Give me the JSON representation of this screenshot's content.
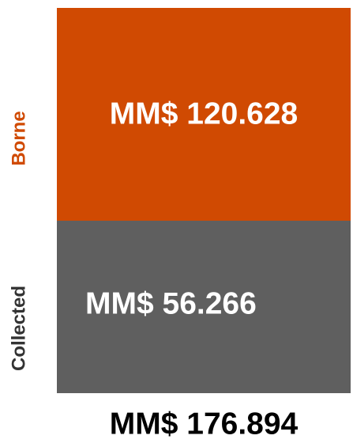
{
  "segments": [
    {
      "label": "Borne",
      "value": "MM$ 120.628"
    },
    {
      "label": "Collected",
      "value": "MM$ 56.266"
    }
  ],
  "total": "MM$ 176.894"
}
